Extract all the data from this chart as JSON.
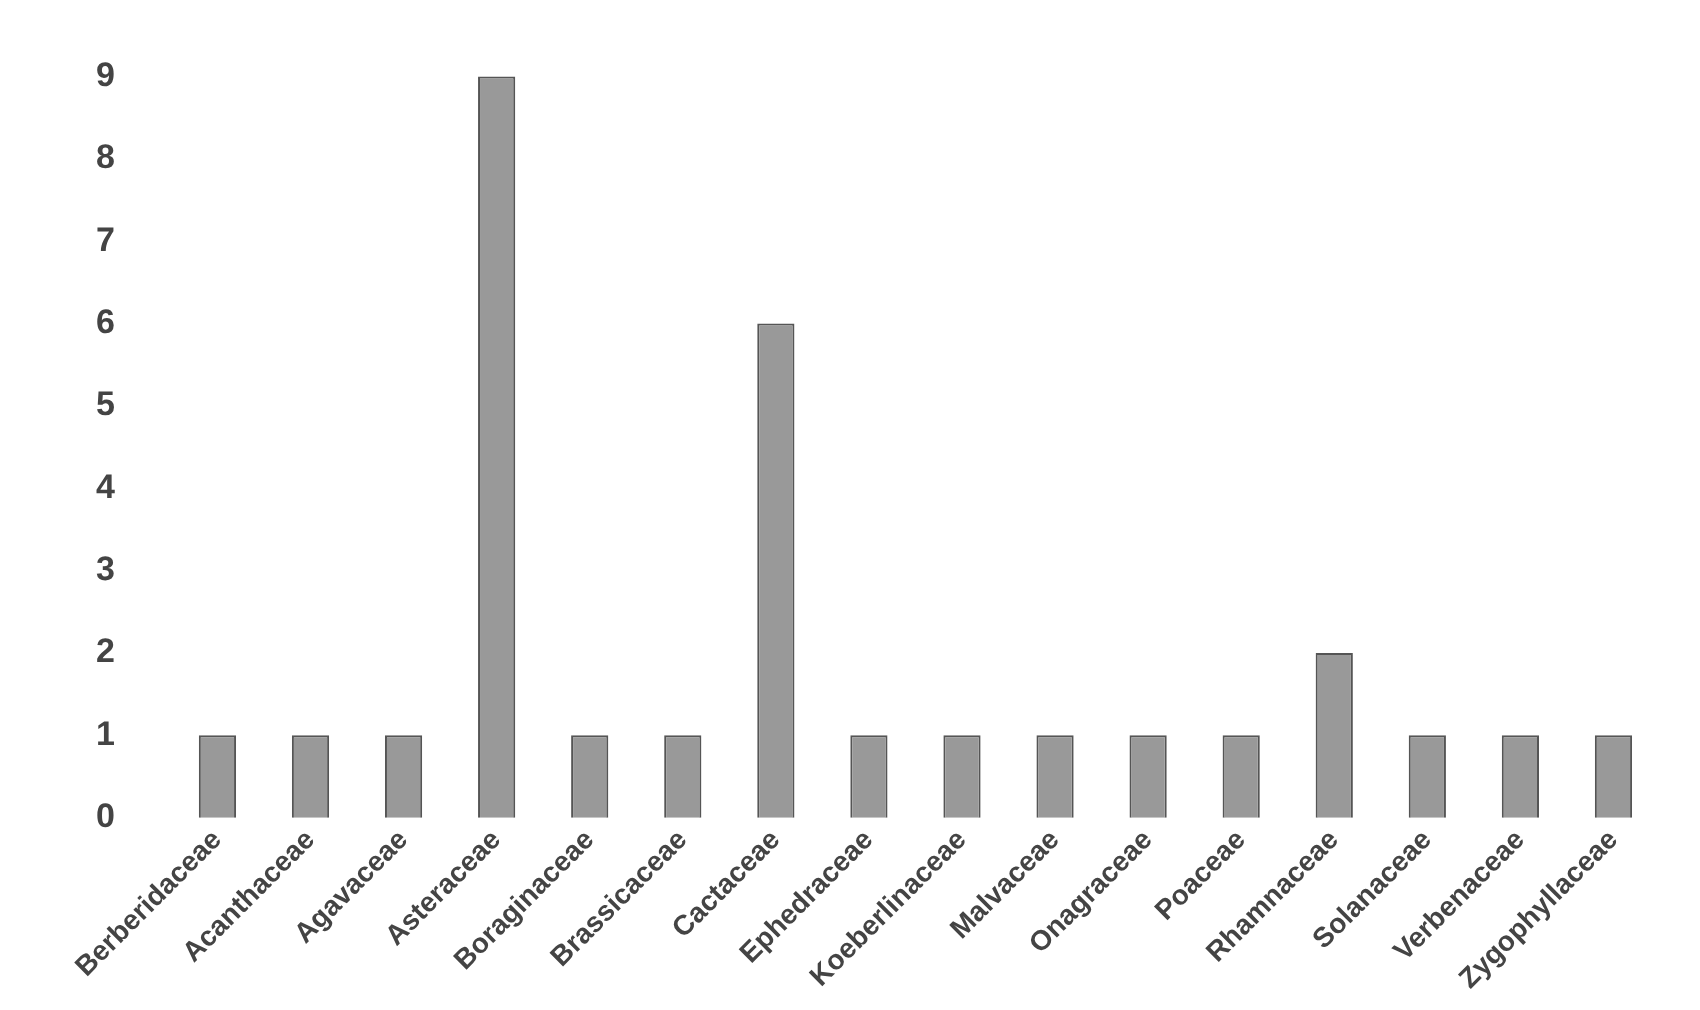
{
  "chart_data": {
    "type": "bar",
    "categories": [
      "Berberidaceae",
      "Acanthaceae",
      "Agavaceae",
      "Asteraceae",
      "Boraginaceae",
      "Brassicaceae",
      "Cactaceae",
      "Ephedraceae",
      "Koeberlinaceae",
      "Malvaceae",
      "Onagraceae",
      "Poaceae",
      "Rhamnaceae",
      "Solanaceae",
      "Verbenaceae",
      "Zygophyllaceae"
    ],
    "values": [
      1,
      1,
      1,
      9,
      1,
      1,
      6,
      1,
      1,
      1,
      1,
      1,
      2,
      1,
      1,
      1
    ],
    "color": "#999999",
    "ylim": [
      0,
      9
    ],
    "yticks": [
      0,
      1,
      2,
      3,
      4,
      5,
      6,
      7,
      8,
      9
    ],
    "grid": false,
    "legend": false
  }
}
